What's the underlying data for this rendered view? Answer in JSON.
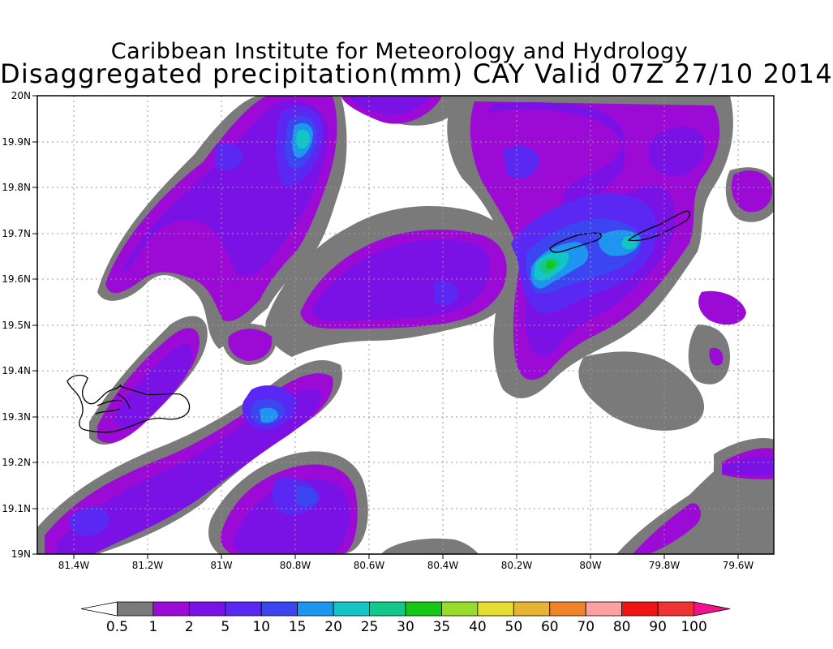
{
  "title": {
    "line1": "Caribbean Institute for Meteorology and Hydrology",
    "line2": "Disaggregated precipitation(mm) CAY Valid 07Z 27/10 2014"
  },
  "axes": {
    "x_ticks": [
      "81.4W",
      "81.2W",
      "81W",
      "80.8W",
      "80.6W",
      "80.4W",
      "80.2W",
      "80W",
      "79.8W",
      "79.6W"
    ],
    "y_ticks": [
      "20N",
      "19.9N",
      "19.8N",
      "19.7N",
      "19.6N",
      "19.5N",
      "19.4N",
      "19.3N",
      "19.2N",
      "19.1N",
      "19N"
    ]
  },
  "legend": {
    "labels": [
      "0.5",
      "1",
      "2",
      "5",
      "10",
      "15",
      "20",
      "25",
      "30",
      "35",
      "40",
      "50",
      "60",
      "70",
      "80",
      "90",
      "100"
    ],
    "colors": [
      "#ffffff",
      "#7a7a7a",
      "#9c0ad6",
      "#7a12e6",
      "#5a28f2",
      "#3c46f0",
      "#1e96f0",
      "#12c6c6",
      "#12c88a",
      "#14c814",
      "#96dc28",
      "#e6dc32",
      "#e6b432",
      "#f08228",
      "#fca0a0",
      "#f01414",
      "#f03232",
      "#f0148c"
    ]
  },
  "precipitation_fields": [
    {
      "region": "north-central band",
      "levels": [
        0.5,
        1,
        5,
        15,
        20
      ]
    },
    {
      "region": "northeast near Cayman Brac / Little Cayman",
      "levels": [
        0.5,
        1,
        5,
        10,
        15,
        20,
        25,
        30
      ]
    },
    {
      "region": "south-central bands",
      "levels": [
        0.5,
        1,
        5,
        10,
        15,
        20
      ]
    },
    {
      "region": "southwest near Grand Cayman",
      "levels": [
        0.5,
        1,
        5
      ]
    }
  ]
}
